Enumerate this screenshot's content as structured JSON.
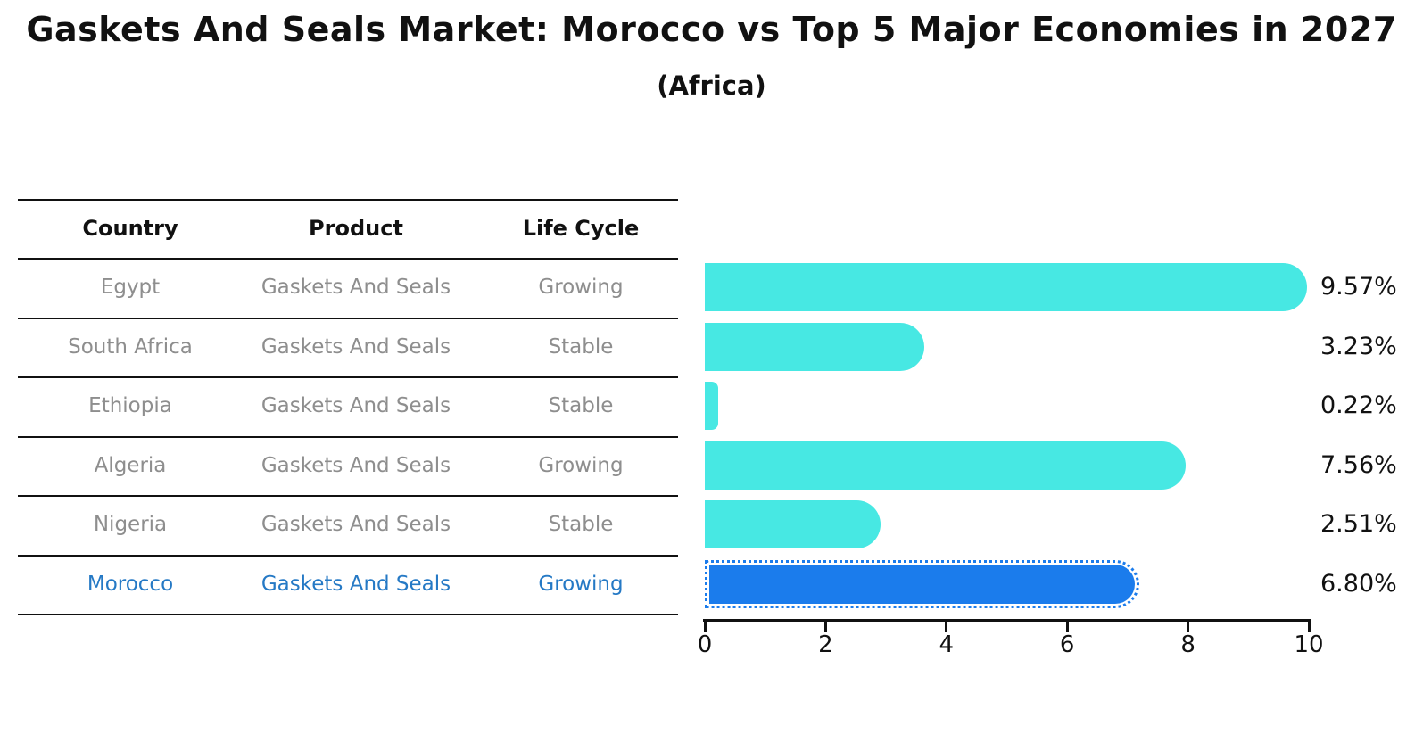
{
  "title": "Gaskets And Seals Market: Morocco vs Top 5 Major Economies in 2027",
  "subtitle": "(Africa)",
  "table": {
    "headers": [
      "Country",
      "Product",
      "Life Cycle"
    ],
    "rows": [
      {
        "country": "Egypt",
        "product": "Gaskets And Seals",
        "life_cycle": "Growing",
        "value_label": "9.57%",
        "highlight": false
      },
      {
        "country": "South Africa",
        "product": "Gaskets And Seals",
        "life_cycle": "Stable",
        "value_label": "3.23%",
        "highlight": false
      },
      {
        "country": "Ethiopia",
        "product": "Gaskets And Seals",
        "life_cycle": "Stable",
        "value_label": "0.22%",
        "highlight": false
      },
      {
        "country": "Algeria",
        "product": "Gaskets And Seals",
        "life_cycle": "Growing",
        "value_label": "7.56%",
        "highlight": false
      },
      {
        "country": "Nigeria",
        "product": "Gaskets And Seals",
        "life_cycle": "Stable",
        "value_label": "2.51%",
        "highlight": false
      },
      {
        "country": "Morocco",
        "product": "Gaskets And Seals",
        "life_cycle": "Growing",
        "value_label": "6.80%",
        "highlight": true
      }
    ]
  },
  "chart_data": {
    "type": "bar",
    "orientation": "horizontal",
    "title": "Gaskets And Seals Market: Morocco vs Top 5 Major Economies in 2027 (Africa)",
    "categories": [
      "Egypt",
      "South Africa",
      "Ethiopia",
      "Algeria",
      "Nigeria",
      "Morocco"
    ],
    "values": [
      9.57,
      3.23,
      0.22,
      7.56,
      2.51,
      6.8
    ],
    "value_labels": [
      "9.57%",
      "3.23%",
      "0.22%",
      "7.56%",
      "2.51%",
      "6.80%"
    ],
    "xlabel": "",
    "ylabel": "",
    "xlim": [
      0,
      10
    ],
    "x_ticks": [
      0,
      2,
      4,
      6,
      8,
      10
    ],
    "grid": false,
    "legend": false,
    "bar_color": "#47e8e3",
    "highlight_color": "#1b7cec",
    "highlight_index": 5
  },
  "colors": {
    "background": "#ffffff",
    "bar_cyan": "#47e8e3",
    "bar_blue": "#1b7cec",
    "highlight_text": "#2579c5",
    "table_text": "#8e8e8e",
    "heading_text": "#111111",
    "axis": "#111111"
  }
}
